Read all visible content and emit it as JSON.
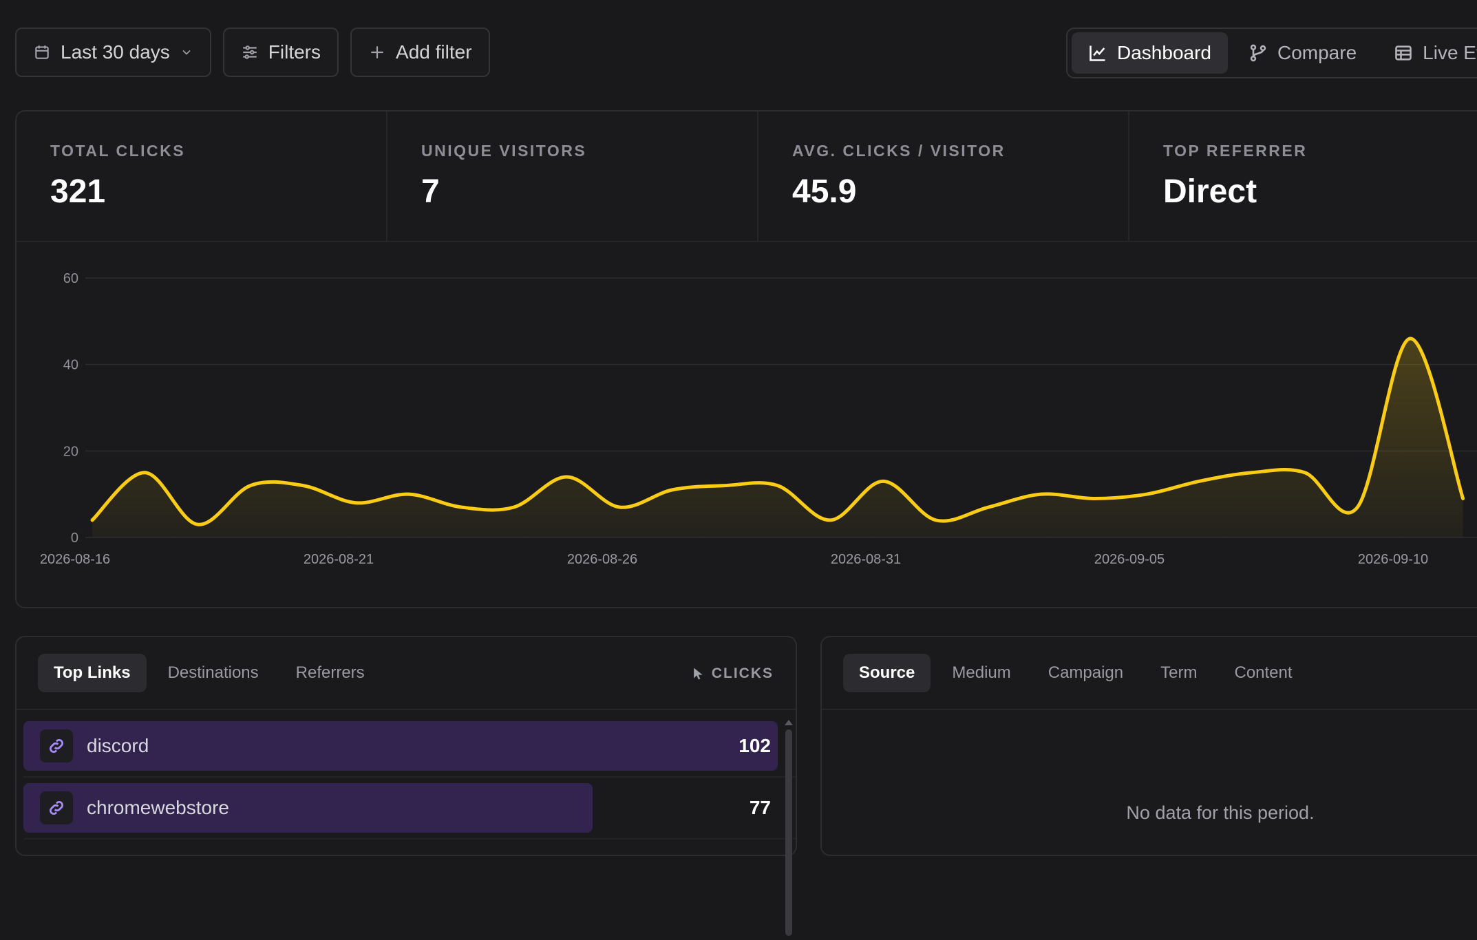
{
  "toolbar": {
    "date_range": "Last 30 days",
    "filters": "Filters",
    "add_filter": "Add filter"
  },
  "view_switch": {
    "items": [
      {
        "label": "Dashboard",
        "icon": "line-chart-icon",
        "active": true
      },
      {
        "label": "Compare",
        "icon": "git-branch-icon",
        "active": false
      },
      {
        "label": "Live Events",
        "icon": "table-icon",
        "active": false
      }
    ]
  },
  "stats": [
    {
      "label": "TOTAL CLICKS",
      "value": "321"
    },
    {
      "label": "UNIQUE VISITORS",
      "value": "7"
    },
    {
      "label": "AVG. CLICKS / VISITOR",
      "value": "45.9"
    },
    {
      "label": "TOP REFERRER",
      "value": "Direct"
    }
  ],
  "chart_data": {
    "type": "area",
    "x": [
      "2026-08-16",
      "2026-08-17",
      "2026-08-18",
      "2026-08-19",
      "2026-08-20",
      "2026-08-21",
      "2026-08-22",
      "2026-08-23",
      "2026-08-24",
      "2026-08-25",
      "2026-08-26",
      "2026-08-27",
      "2026-08-28",
      "2026-08-29",
      "2026-08-30",
      "2026-08-31",
      "2026-09-01",
      "2026-09-02",
      "2026-09-03",
      "2026-09-04",
      "2026-09-05",
      "2026-09-06",
      "2026-09-07",
      "2026-09-08",
      "2026-09-09",
      "2026-09-10",
      "2026-09-11"
    ],
    "series": [
      {
        "values": [
          4,
          15,
          3,
          12,
          12,
          8,
          10,
          7,
          7,
          14,
          7,
          11,
          12,
          12,
          4,
          13,
          4,
          7,
          10,
          9,
          10,
          13,
          15,
          15,
          7,
          46,
          9
        ]
      }
    ],
    "x_ticks": [
      "2026-08-16",
      "2026-08-21",
      "2026-08-26",
      "2026-08-31",
      "2026-09-05",
      "2026-09-10"
    ],
    "y_ticks": [
      0,
      20,
      40,
      60
    ],
    "ylim": [
      0,
      60
    ],
    "grid": true,
    "line_color": "#facc15"
  },
  "left_panel": {
    "tabs": [
      {
        "label": "Top Links",
        "active": true
      },
      {
        "label": "Destinations",
        "active": false
      },
      {
        "label": "Referrers",
        "active": false
      }
    ],
    "column": "CLICKS",
    "rows": [
      {
        "name": "discord",
        "clicks": "102",
        "value": 102
      },
      {
        "name": "chromewebstore",
        "clicks": "77",
        "value": 77
      }
    ],
    "max_value": 102
  },
  "right_panel": {
    "tabs": [
      {
        "label": "Source",
        "active": true
      },
      {
        "label": "Medium",
        "active": false
      },
      {
        "label": "Campaign",
        "active": false
      },
      {
        "label": "Term",
        "active": false
      },
      {
        "label": "Content",
        "active": false
      }
    ],
    "empty_text": "No data for this period."
  }
}
